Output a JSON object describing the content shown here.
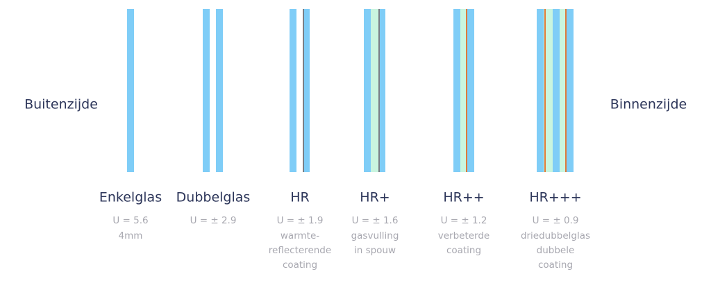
{
  "sides": {
    "outside": "Buitenzijde",
    "inside": "Binnenzijde"
  },
  "glass_types": [
    {
      "name": "Enkelglas",
      "u_value": "U = 5.6",
      "description": [
        "4mm"
      ]
    },
    {
      "name": "Dubbelglas",
      "u_value": "U = ± 2.9",
      "description": []
    },
    {
      "name": "HR",
      "u_value": "U = ± 1.9",
      "description": [
        "warmte-",
        "reflecterende",
        "coating"
      ]
    },
    {
      "name": "HR+",
      "u_value": "U = ± 1.6",
      "description": [
        "gasvulling",
        "in spouw"
      ]
    },
    {
      "name": "HR++",
      "u_value": "U = ± 1.2",
      "description": [
        "verbeterde",
        "coating"
      ]
    },
    {
      "name": "HR+++",
      "u_value": "U = ± 0.9",
      "description": [
        "driedubbelglas",
        "dubbele",
        "coating"
      ]
    }
  ]
}
